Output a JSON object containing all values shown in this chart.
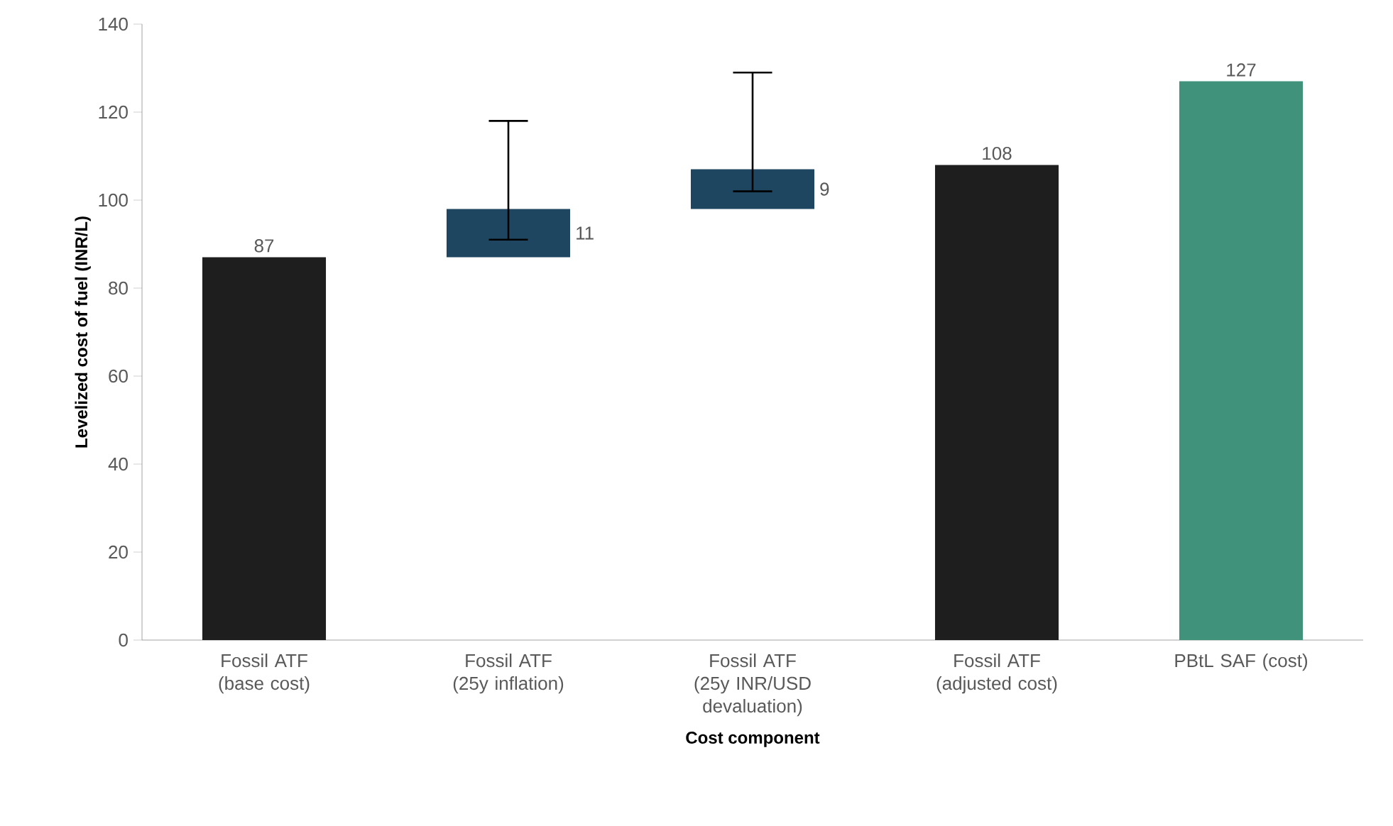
{
  "chart_data": {
    "type": "bar",
    "xlabel": "Cost component",
    "ylabel": "Levelized cost of fuel (INR/L)",
    "categories": [
      "Fossil ATF (base cost)",
      "Fossil ATF (25y inflation)",
      "Fossil ATF (25y INR/USD devaluation)",
      "Fossil ATF (adjusted cost)",
      "PBtL SAF (cost)"
    ],
    "values": [
      87,
      11,
      9,
      108,
      127
    ],
    "base": [
      0,
      87,
      98,
      0,
      0
    ],
    "colors": [
      "#1e1e1e",
      "#1f4660",
      "#1f4660",
      "#1e1e1e",
      "#40937a"
    ],
    "errors": [
      null,
      [
        91,
        118
      ],
      [
        102,
        129
      ],
      null,
      null
    ],
    "ylim": [
      0,
      140
    ],
    "yticks": [
      0,
      20,
      40,
      60,
      80,
      100,
      120,
      140
    ],
    "data_labels": true,
    "grid": false
  }
}
